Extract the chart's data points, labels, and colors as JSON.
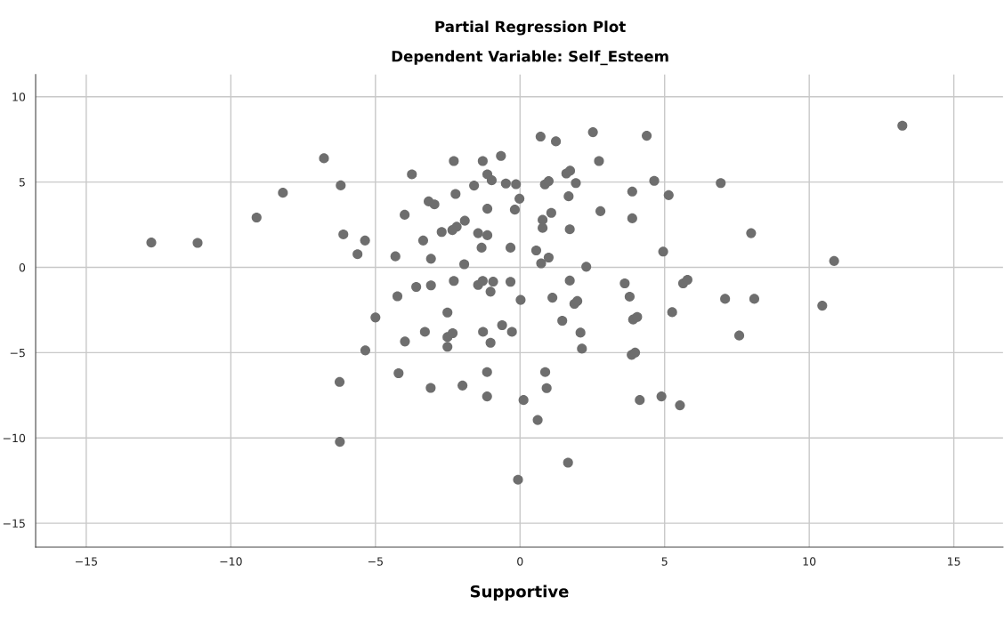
{
  "chart_data": {
    "type": "scatter",
    "title": "Partial Regression Plot",
    "subtitle": "Dependent Variable: Self_Esteem",
    "xlabel": "Supportive",
    "xlim": [
      -16.75,
      16.7
    ],
    "ylim": [
      -16.4,
      11.3
    ],
    "xticks": [
      -15,
      -10,
      -5,
      0,
      5,
      10,
      15
    ],
    "yticks": [
      -15,
      -10,
      -5,
      0,
      5,
      10
    ],
    "grid": true,
    "marker": "circle",
    "series": [
      {
        "color": "#6e6e6e",
        "x": [
          -12.75,
          -11.15,
          -9.11,
          -8.2,
          -6.78,
          -6.2,
          -3.74,
          -3.99,
          -6.11,
          -5.36,
          -5.62,
          -4.31,
          -3.59,
          -4.24,
          -5.0,
          -3.98,
          -5.35,
          -4.2,
          -6.24,
          -6.23,
          0.71,
          1.24,
          2.52,
          2.73,
          -0.66,
          -2.29,
          -1.29,
          -1.13,
          -0.98,
          -1.59,
          -0.49,
          -0.14,
          1.6,
          1.73,
          0.86,
          0.99,
          1.93,
          -2.23,
          1.68,
          -0.02,
          -3.16,
          -2.96,
          -1.13,
          -0.18,
          2.78,
          1.08,
          0.78,
          0.78,
          1.72,
          -1.91,
          -2.19,
          -2.34,
          -2.71,
          -3.35,
          -1.45,
          -1.13,
          -1.33,
          -0.33,
          0.56,
          0.99,
          0.73,
          2.29,
          -3.08,
          -1.93,
          -2.29,
          -3.08,
          -1.45,
          -1.29,
          -0.93,
          -0.33,
          -1.02,
          1.72,
          0.02,
          1.12,
          1.88,
          1.98,
          -2.51,
          1.46,
          -0.62,
          -3.29,
          -2.51,
          -2.33,
          -2.51,
          -1.28,
          -1.02,
          -0.28,
          2.09,
          2.14,
          -3.09,
          -1.99,
          -1.14,
          -1.14,
          0.12,
          0.87,
          0.92,
          0.61,
          1.66,
          -0.07,
          13.22,
          4.38,
          4.64,
          6.94,
          3.88,
          5.14,
          3.88,
          7.99,
          4.95,
          10.86,
          3.62,
          3.79,
          5.64,
          5.79,
          7.09,
          8.1,
          10.45,
          5.26,
          3.91,
          4.05,
          7.58,
          3.86,
          3.98,
          4.14,
          4.89,
          5.53
        ],
        "values": [
          1.45,
          1.43,
          2.92,
          4.37,
          6.39,
          4.8,
          5.45,
          3.08,
          1.93,
          1.57,
          0.77,
          0.64,
          -1.15,
          -1.7,
          -2.94,
          -4.35,
          -4.87,
          -6.21,
          -6.72,
          -10.23,
          7.66,
          7.38,
          7.92,
          6.23,
          6.53,
          6.23,
          6.23,
          5.45,
          5.1,
          4.79,
          4.91,
          4.87,
          5.5,
          5.66,
          4.86,
          5.05,
          4.94,
          4.3,
          4.16,
          4.02,
          3.86,
          3.69,
          3.43,
          3.38,
          3.29,
          3.19,
          2.78,
          2.31,
          2.23,
          2.73,
          2.38,
          2.18,
          2.07,
          1.57,
          2.0,
          1.88,
          1.15,
          1.15,
          0.99,
          0.57,
          0.23,
          0.03,
          0.5,
          0.18,
          -0.8,
          -1.06,
          -1.03,
          -0.8,
          -0.84,
          -0.85,
          -1.43,
          -0.78,
          -1.91,
          -1.78,
          -2.14,
          -1.98,
          -2.65,
          -3.13,
          -3.39,
          -3.78,
          -4.09,
          -3.86,
          -4.66,
          -3.78,
          -4.42,
          -3.78,
          -3.83,
          -4.77,
          -7.07,
          -6.93,
          -6.14,
          -7.57,
          -7.78,
          -6.14,
          -7.08,
          -8.95,
          -11.45,
          -12.45,
          8.3,
          7.71,
          5.07,
          4.94,
          4.44,
          4.23,
          2.87,
          2.0,
          0.92,
          0.37,
          -0.94,
          -1.72,
          -0.94,
          -0.73,
          -1.85,
          -1.85,
          -2.25,
          -2.63,
          -3.06,
          -2.91,
          -4.0,
          -5.13,
          -5.0,
          -7.78,
          -7.57,
          -8.09
        ]
      }
    ]
  }
}
